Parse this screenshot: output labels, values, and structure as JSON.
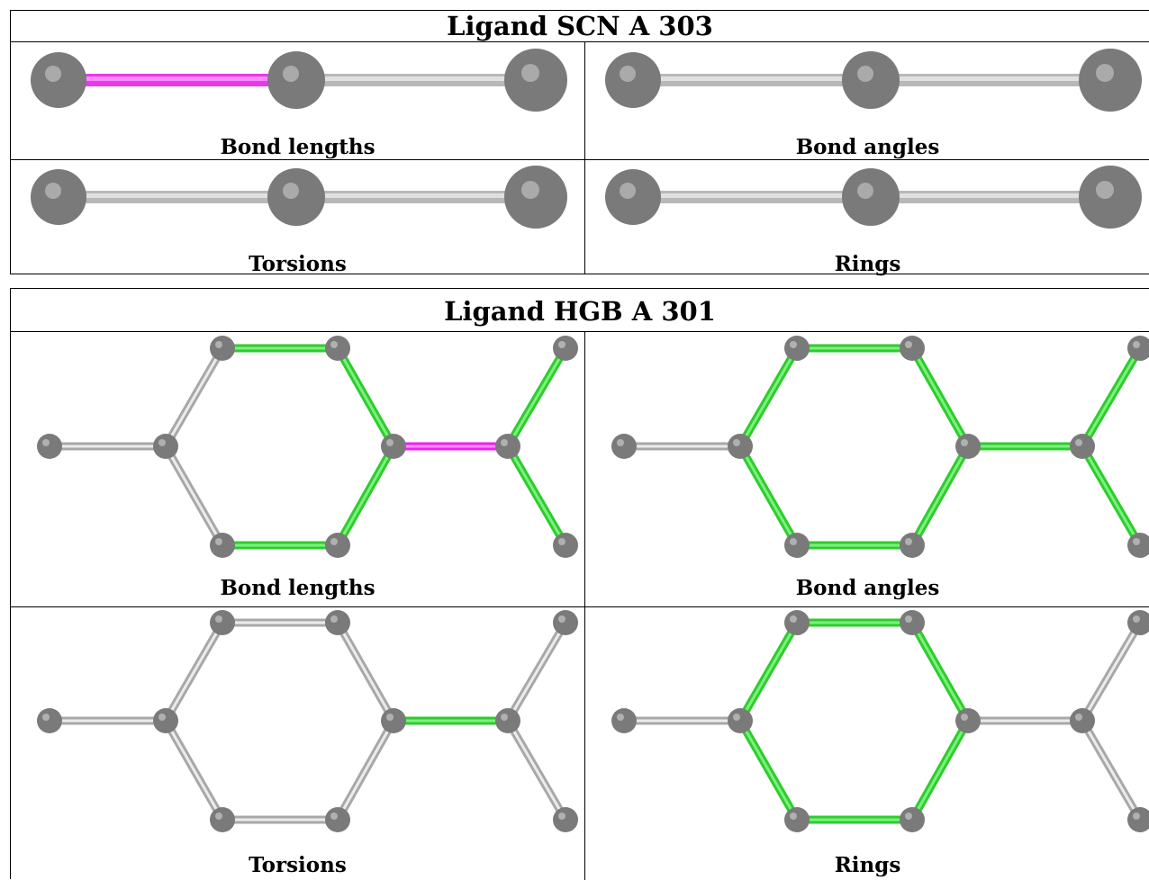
{
  "ligand_scn": {
    "title": "Ligand SCN A 303",
    "panels": [
      {
        "caption": "Bond lengths"
      },
      {
        "caption": "Bond angles"
      },
      {
        "caption": "Torsions"
      },
      {
        "caption": "Rings"
      }
    ]
  },
  "ligand_hgb": {
    "title": "Ligand HGB A 301",
    "panels": [
      {
        "caption": "Bond lengths"
      },
      {
        "caption": "Bond angles"
      },
      {
        "caption": "Torsions"
      },
      {
        "caption": "Rings"
      }
    ]
  },
  "colors": {
    "atom": "#808080",
    "bond_default": "#c0c0c0",
    "bond_outlier_magenta": "#ee22ee",
    "bond_highlight_green": "#2ecc2e"
  }
}
